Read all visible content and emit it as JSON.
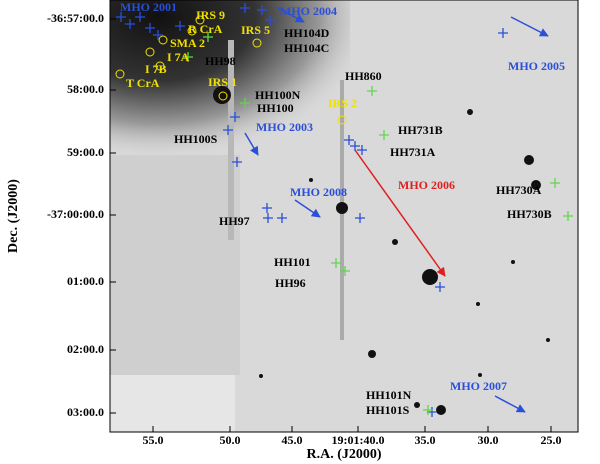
{
  "axes": {
    "x_label": "R.A. (J2000)",
    "y_label": "Dec. (J2000)",
    "x_ticks": [
      "55.0",
      "50.0",
      "45.0",
      "19:01:40.0",
      "35.0",
      "30.0",
      "25.0"
    ],
    "y_ticks": [
      "-36:57:00.0",
      "58:00.0",
      "59:00.0",
      "-37:00:00.0",
      "01:00.0",
      "02:00.0",
      "03:00.0"
    ]
  },
  "labels": {
    "yellow": [
      "IRS 9",
      "R CrA",
      "IRS 5",
      "SMA 2",
      "I 7A",
      "I 7B",
      "T CrA",
      "IRS 1",
      "IRS 2"
    ],
    "blue": [
      "MHO 2001",
      "MHO 2004",
      "MHO 2005",
      "MHO 2003",
      "MHO 2008",
      "MHO 2007"
    ],
    "red": [
      "MHO 2006"
    ],
    "black": [
      "HH104D",
      "HH104C",
      "HH98",
      "HH860",
      "HH100N",
      "HH100",
      "HH731B",
      "HH100S",
      "HH731A",
      "HH730A",
      "HH97",
      "HH730B",
      "HH101",
      "HH96",
      "HH101N",
      "HH101S"
    ]
  }
}
